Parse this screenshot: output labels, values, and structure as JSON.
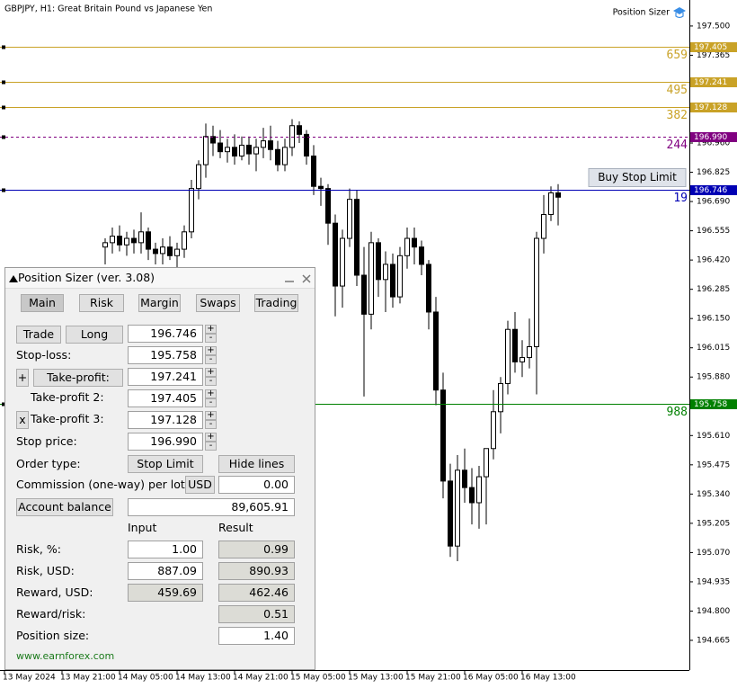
{
  "window": {
    "title": "GBPJPY, H1:  Great Britain Pound vs Japanese Yen",
    "indicator": "Position Sizer"
  },
  "chart_data": {
    "type": "candlestick",
    "x": [
      14,
      15,
      16,
      17,
      18,
      19,
      20,
      21,
      22,
      23,
      24,
      25,
      26,
      27,
      28,
      29,
      30,
      31,
      32,
      33,
      34,
      35,
      36,
      37,
      38,
      39,
      40,
      41,
      42,
      43,
      44,
      45,
      46,
      47,
      48,
      49,
      50,
      51,
      52,
      53,
      54,
      55,
      56,
      57,
      58,
      59,
      60,
      61,
      62,
      63,
      64,
      65,
      66,
      67,
      68,
      69,
      70,
      71,
      72,
      73,
      74,
      75,
      76,
      77
    ],
    "open": [
      196.48,
      196.5,
      196.53,
      196.49,
      196.52,
      196.5,
      196.55,
      196.47,
      196.45,
      196.48,
      196.44,
      196.47,
      196.55,
      196.75,
      196.86,
      196.99,
      196.96,
      196.92,
      196.94,
      196.9,
      196.95,
      196.91,
      196.94,
      196.97,
      196.93,
      196.86,
      196.94,
      197.04,
      197.0,
      196.9,
      196.76,
      196.75,
      196.59,
      196.3,
      196.52,
      196.7,
      196.35,
      196.17,
      196.5,
      196.33,
      196.4,
      196.25,
      196.44,
      196.52,
      196.48,
      196.4,
      196.18,
      195.82,
      195.4,
      195.1,
      195.45,
      195.37,
      195.3,
      195.42,
      195.55,
      195.72,
      195.85,
      196.1,
      195.95,
      195.97,
      196.02,
      196.52,
      196.63,
      196.73
    ],
    "high": [
      196.52,
      196.57,
      196.58,
      196.55,
      196.56,
      196.64,
      196.57,
      196.5,
      196.52,
      196.53,
      196.5,
      196.58,
      196.79,
      196.88,
      197.05,
      197.04,
      197.02,
      196.98,
      197.0,
      196.99,
      196.99,
      196.98,
      197.03,
      197.04,
      196.97,
      196.98,
      197.07,
      197.06,
      197.02,
      196.95,
      196.8,
      196.77,
      196.63,
      196.56,
      196.75,
      196.74,
      196.48,
      196.55,
      196.52,
      196.46,
      196.45,
      196.48,
      196.57,
      196.57,
      196.51,
      196.42,
      196.25,
      195.9,
      195.48,
      195.52,
      195.55,
      195.46,
      195.47,
      195.55,
      195.82,
      195.88,
      196.14,
      196.18,
      196.05,
      196.15,
      196.55,
      196.72,
      196.76,
      196.77
    ],
    "low": [
      196.4,
      196.45,
      196.46,
      196.44,
      196.45,
      196.45,
      196.42,
      196.4,
      196.4,
      196.42,
      196.38,
      196.43,
      196.52,
      196.7,
      196.8,
      196.9,
      196.89,
      196.87,
      196.86,
      196.88,
      196.86,
      196.83,
      196.89,
      196.88,
      196.83,
      196.83,
      196.9,
      196.96,
      196.86,
      196.72,
      196.67,
      196.49,
      196.16,
      196.2,
      196.48,
      196.3,
      195.79,
      196.1,
      196.25,
      196.18,
      196.2,
      196.22,
      196.38,
      196.4,
      196.35,
      196.1,
      195.75,
      195.32,
      195.05,
      195.03,
      195.3,
      195.2,
      195.18,
      195.2,
      195.5,
      195.62,
      195.8,
      195.9,
      195.88,
      195.92,
      195.8,
      196.45,
      196.6,
      196.58
    ],
    "close": [
      196.5,
      196.53,
      196.49,
      196.52,
      196.5,
      196.55,
      196.47,
      196.45,
      196.48,
      196.44,
      196.47,
      196.55,
      196.75,
      196.86,
      196.99,
      196.96,
      196.92,
      196.94,
      196.9,
      196.95,
      196.91,
      196.94,
      196.97,
      196.93,
      196.86,
      196.94,
      197.04,
      197.0,
      196.9,
      196.76,
      196.75,
      196.59,
      196.3,
      196.52,
      196.7,
      196.35,
      196.17,
      196.5,
      196.33,
      196.4,
      196.25,
      196.44,
      196.52,
      196.48,
      196.4,
      196.18,
      195.82,
      195.4,
      195.1,
      195.45,
      195.37,
      195.3,
      195.42,
      195.55,
      195.72,
      195.85,
      196.1,
      195.95,
      195.97,
      196.02,
      196.52,
      196.63,
      196.73,
      196.71
    ],
    "up_color": "#ffffff",
    "down_color": "#000000",
    "xlim": [
      -0.625,
      95.25
    ],
    "xticks": [
      {
        "value": 0,
        "label": "13 May 2024"
      },
      {
        "value": 8,
        "label": "13 May 21:00"
      },
      {
        "value": 16,
        "label": "14 May 05:00"
      },
      {
        "value": 24,
        "label": "14 May 13:00"
      },
      {
        "value": 32,
        "label": "14 May 21:00"
      },
      {
        "value": 40,
        "label": "15 May 05:00"
      },
      {
        "value": 48,
        "label": "15 May 13:00"
      },
      {
        "value": 56,
        "label": "15 May 21:00"
      },
      {
        "value": 64,
        "label": "16 May 05:00"
      },
      {
        "value": 72,
        "label": "16 May 13:00"
      }
    ],
    "ylim": [
      194.528,
      197.62
    ],
    "yticks": [
      {
        "value": 197.5,
        "label": "197.500"
      },
      197.365,
      {
        "value": 196.96,
        "label": "196.960"
      },
      196.825,
      {
        "value": 196.69,
        "label": "196.690"
      },
      196.555,
      {
        "value": 196.42,
        "label": "196.420"
      },
      196.285,
      {
        "value": 196.15,
        "label": "196.150"
      },
      196.015,
      {
        "value": 195.88,
        "label": "195.880"
      },
      {
        "value": 195.61,
        "label": "195.610"
      },
      195.475,
      {
        "value": 195.34,
        "label": "195.340"
      },
      195.205,
      {
        "value": 195.07,
        "label": "195.070"
      },
      194.935,
      {
        "value": 194.8,
        "label": "194.800"
      },
      194.665
    ],
    "levels": [
      {
        "price": 197.405,
        "points": 659,
        "color": "#c9a227",
        "style": "solid"
      },
      {
        "price": 197.241,
        "points": 495,
        "color": "#c9a227",
        "style": "solid"
      },
      {
        "price": 197.128,
        "points": 382,
        "color": "#c9a227",
        "style": "solid"
      },
      {
        "price": 196.99,
        "price_label": "196.990",
        "points": 244,
        "color": "#800080",
        "style": "dashed"
      },
      {
        "price": 196.746,
        "points": 19,
        "color": "#0000b4",
        "style": "solid",
        "order_button": "Buy Stop Limit"
      },
      {
        "price": 195.758,
        "points": 988,
        "color": "#008000",
        "style": "solid"
      }
    ]
  },
  "panel": {
    "title": "Position Sizer (ver. 3.08)",
    "tabs": [
      "Main",
      "Risk",
      "Margin",
      "Swaps",
      "Trading"
    ],
    "spin_plus": "+",
    "spin_minus": "-",
    "trade_button": "Trade",
    "direction_button": "Long",
    "entry": "196.746",
    "stop_loss_label": "Stop-loss:",
    "stop_loss": "195.758",
    "add_tp_button": "+",
    "take_profit_button": "Take-profit:",
    "take_profit": "197.241",
    "take_profit_2_label": "Take-profit 2:",
    "take_profit_2": "197.405",
    "remove_tp_button": "x",
    "take_profit_3_label": "Take-profit 3:",
    "take_profit_3": "197.128",
    "stop_price_label": "Stop price:",
    "stop_price": "196.990",
    "order_type_label": "Order type:",
    "order_type_button": "Stop Limit",
    "hide_lines_button": "Hide lines",
    "commission_label": "Commission (one-way) per lot:",
    "commission_currency_button": "USD",
    "commission": "0.00",
    "account_button": "Account balance",
    "account_balance": "89,605.91",
    "input_header": "Input",
    "result_header": "Result",
    "rows": [
      {
        "label": "Risk, %:",
        "input": "1.00",
        "result": "0.99"
      },
      {
        "label": "Risk, USD:",
        "input": "887.09",
        "result": "890.93"
      },
      {
        "label": "Reward, USD:",
        "input": "459.69",
        "result": "462.46"
      },
      {
        "label": "Reward/risk:",
        "result": "0.51"
      },
      {
        "label": "Position size:",
        "result": "1.40"
      }
    ],
    "link": "www.earnforex.com"
  }
}
